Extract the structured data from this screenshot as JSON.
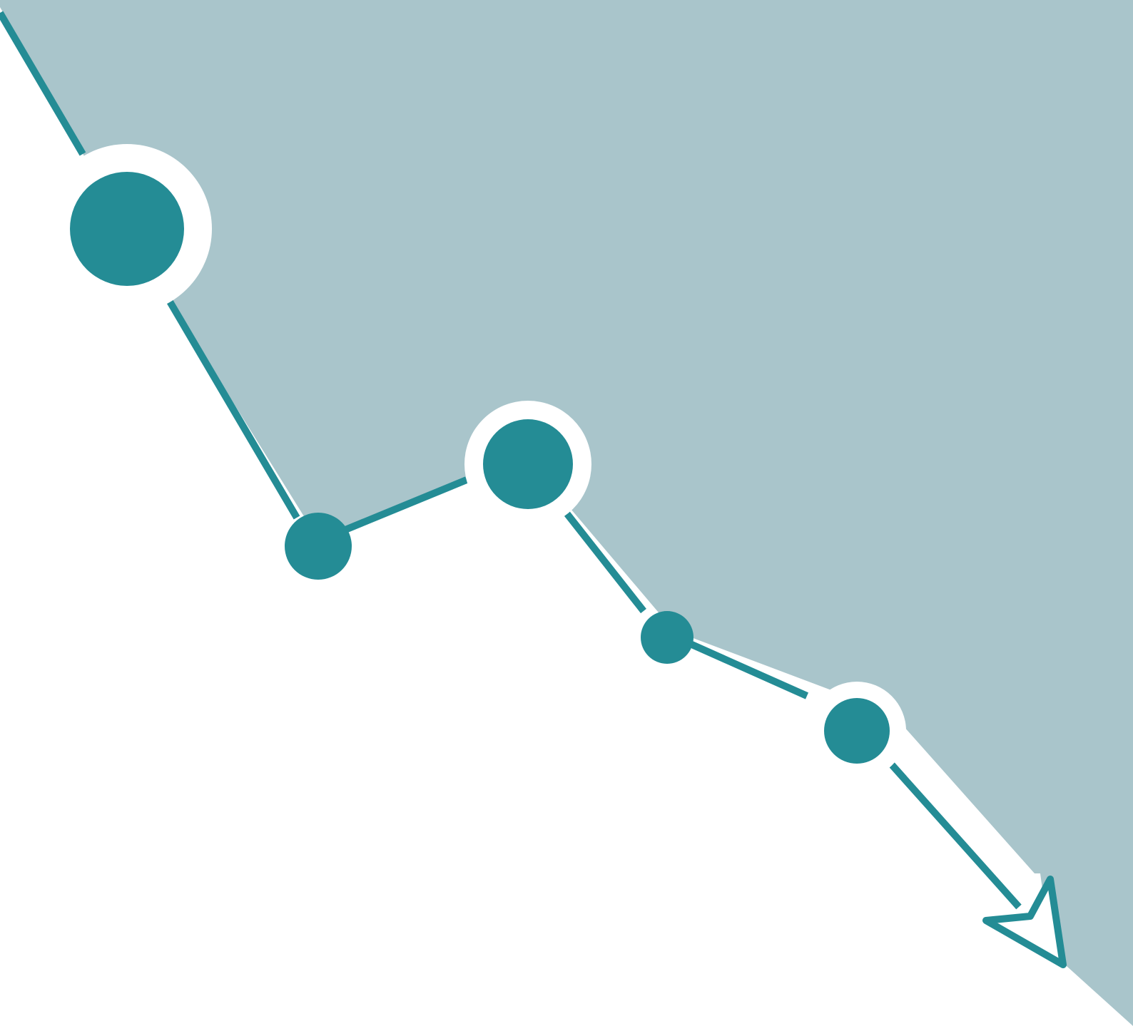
{
  "graphic": {
    "kind": "decorative-trend-illustration",
    "trend": "declining",
    "colors": {
      "background": "#ffffff",
      "area_fill": "#a9c5cb",
      "line": "#248c95",
      "marker_fill": "#248c95",
      "marker_halo": "#ffffff"
    },
    "icons": [
      "trend-arrow-icon"
    ]
  }
}
